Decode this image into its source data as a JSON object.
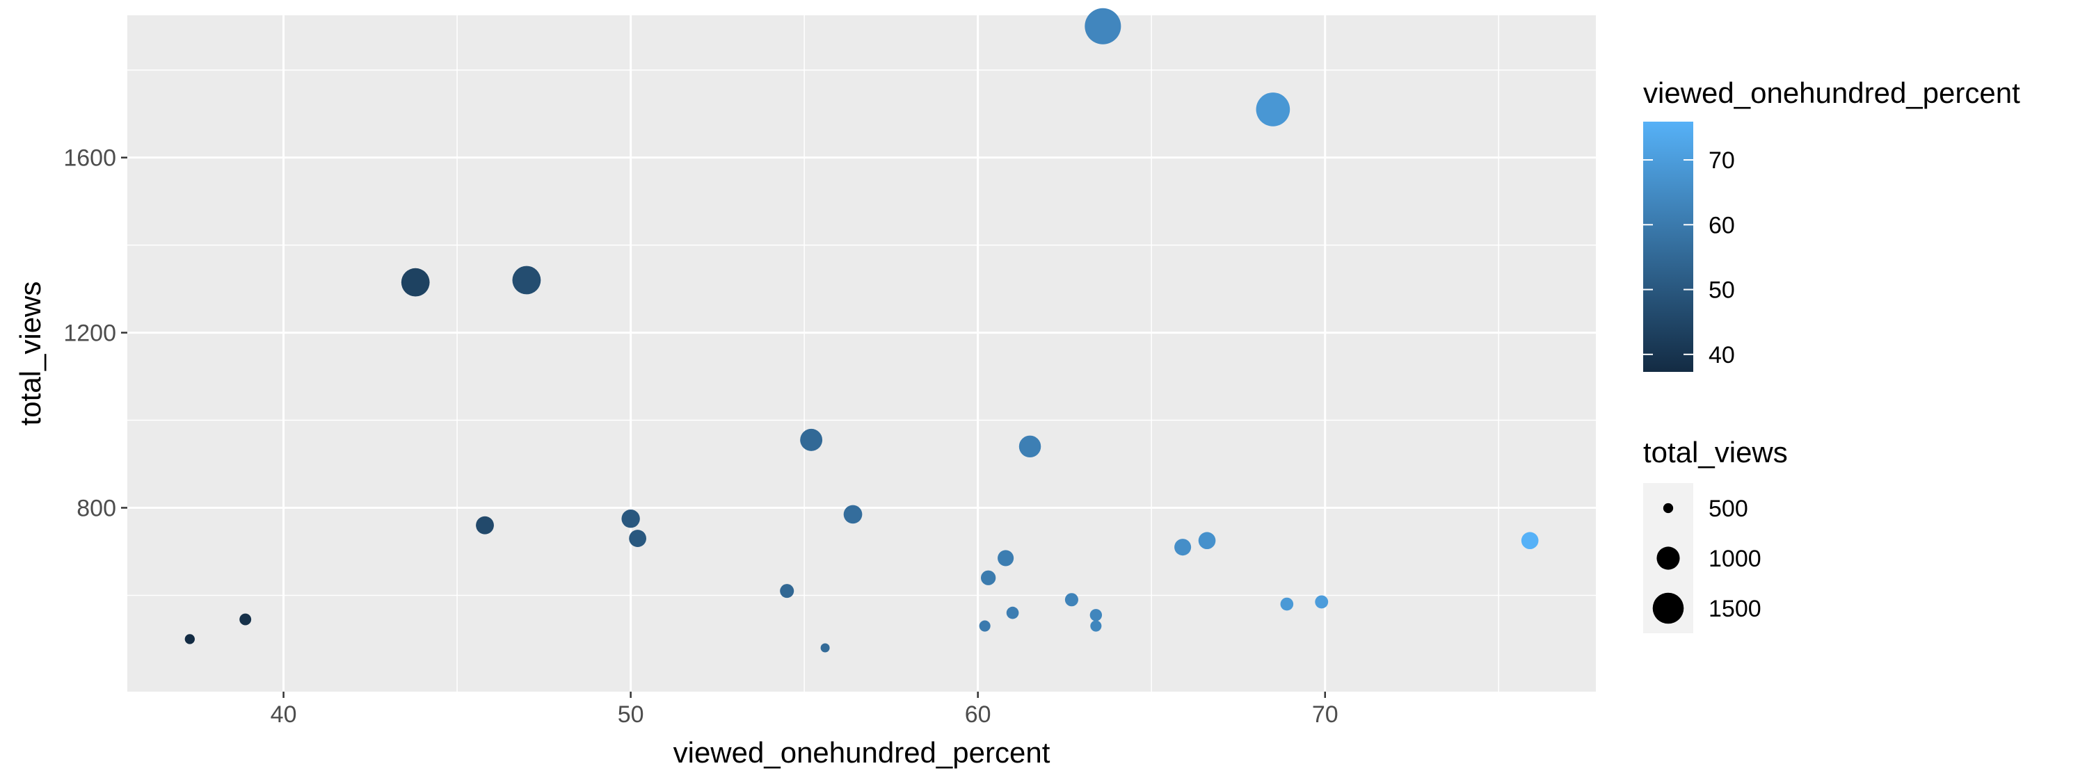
{
  "chart_data": {
    "type": "scatter",
    "title": "",
    "xlabel": "viewed_onehundred_percent",
    "ylabel": "total_views",
    "xlim": [
      35.5,
      77.8
    ],
    "ylim": [
      380,
      1925
    ],
    "x_ticks": [
      40,
      50,
      60,
      70
    ],
    "y_ticks": [
      800,
      1200,
      1600
    ],
    "grid": true,
    "colors": {
      "panel_background": "#EBEBEB",
      "grid_major": "#FFFFFF",
      "gradient_low": "#132B43",
      "gradient_high": "#56B1F7"
    },
    "points": [
      {
        "x": 37.3,
        "y": 500
      },
      {
        "x": 38.9,
        "y": 545
      },
      {
        "x": 43.8,
        "y": 1315
      },
      {
        "x": 45.8,
        "y": 760
      },
      {
        "x": 47.0,
        "y": 1320
      },
      {
        "x": 50.0,
        "y": 775
      },
      {
        "x": 50.2,
        "y": 730
      },
      {
        "x": 54.5,
        "y": 610
      },
      {
        "x": 55.2,
        "y": 955
      },
      {
        "x": 55.6,
        "y": 480
      },
      {
        "x": 56.4,
        "y": 785
      },
      {
        "x": 60.2,
        "y": 530
      },
      {
        "x": 60.3,
        "y": 640
      },
      {
        "x": 60.8,
        "y": 685
      },
      {
        "x": 61.0,
        "y": 560
      },
      {
        "x": 61.5,
        "y": 940
      },
      {
        "x": 62.7,
        "y": 590
      },
      {
        "x": 63.4,
        "y": 555
      },
      {
        "x": 63.4,
        "y": 530
      },
      {
        "x": 63.6,
        "y": 1900
      },
      {
        "x": 65.9,
        "y": 710
      },
      {
        "x": 66.6,
        "y": 725
      },
      {
        "x": 68.5,
        "y": 1710
      },
      {
        "x": 68.9,
        "y": 580
      },
      {
        "x": 69.9,
        "y": 585
      },
      {
        "x": 75.9,
        "y": 725
      }
    ],
    "color_legend": {
      "title": "viewed_onehundred_percent",
      "breaks": [
        40,
        50,
        60,
        70
      ],
      "range": [
        37.3,
        75.9
      ]
    },
    "size_legend": {
      "title": "total_views",
      "breaks": [
        500,
        1000,
        1500
      ],
      "range": [
        480,
        1900
      ]
    }
  }
}
